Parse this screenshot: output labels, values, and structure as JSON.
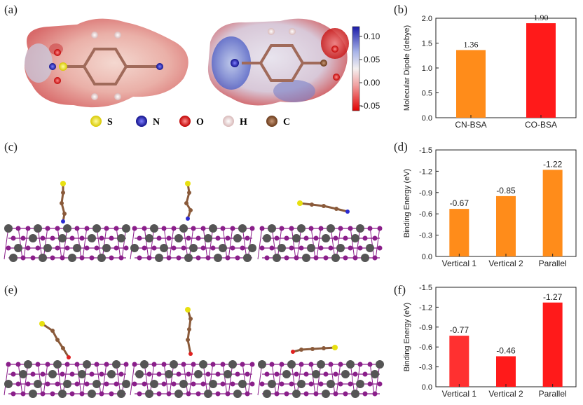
{
  "panels": {
    "a": "(a)",
    "b": "(b)",
    "c": "(c)",
    "d": "(d)",
    "e": "(e)",
    "f": "(f)"
  },
  "colorbar": {
    "ticks": [
      "0.10",
      "0.05",
      "0.00",
      "-0.05"
    ]
  },
  "legend": [
    {
      "symbol": "S",
      "color": "#e8e010"
    },
    {
      "symbol": "N",
      "color": "#2a2ad0"
    },
    {
      "symbol": "O",
      "color": "#e02020"
    },
    {
      "symbol": "H",
      "color": "#f0d8d8"
    },
    {
      "symbol": "C",
      "color": "#8a5a3a"
    }
  ],
  "colors": {
    "orange": "#ff8c1a",
    "red": "#ff1a1a",
    "red_light": "#ff3030",
    "slab_purple": "#8a1f8a",
    "slab_gray": "#555555"
  },
  "chart_data": [
    {
      "id": "b",
      "type": "bar",
      "ylabel": "Molecular Dipole (debye)",
      "categories": [
        "CN-BSA",
        "CO-BSA"
      ],
      "values": [
        1.36,
        1.9
      ],
      "value_labels": [
        "1.36",
        "1.90"
      ],
      "colors": [
        "#ff8c1a",
        "#ff1a1a"
      ],
      "ylim": [
        0.0,
        2.0
      ],
      "yticks": [
        "0.0",
        "0.5",
        "1.0",
        "1.5",
        "2.0"
      ],
      "inverted": false
    },
    {
      "id": "d",
      "type": "bar",
      "ylabel": "Binding Energy (eV)",
      "categories": [
        "Vertical 1",
        "Vertical 2",
        "Parallel"
      ],
      "values": [
        -0.67,
        -0.85,
        -1.22
      ],
      "value_labels": [
        "-0.67",
        "-0.85",
        "-1.22"
      ],
      "colors": [
        "#ff8c1a",
        "#ff8c1a",
        "#ff8c1a"
      ],
      "ylim": [
        0.0,
        -1.5
      ],
      "yticks": [
        "0.0",
        "-0.3",
        "-0.6",
        "-0.9",
        "-1.2",
        "-1.5"
      ],
      "inverted": true
    },
    {
      "id": "f",
      "type": "bar",
      "ylabel": "Binding Energy (eV)",
      "categories": [
        "Vertical 1",
        "Vertical 2",
        "Parallel"
      ],
      "values": [
        -0.77,
        -0.46,
        -1.27
      ],
      "value_labels": [
        "-0.77",
        "-0.46",
        "-1.27"
      ],
      "colors": [
        "#ff3030",
        "#ff1a1a",
        "#ff1a1a"
      ],
      "ylim": [
        0.0,
        -1.5
      ],
      "yticks": [
        "0.0",
        "-0.3",
        "-0.6",
        "-0.9",
        "-1.2",
        "-1.5"
      ],
      "inverted": true
    }
  ]
}
